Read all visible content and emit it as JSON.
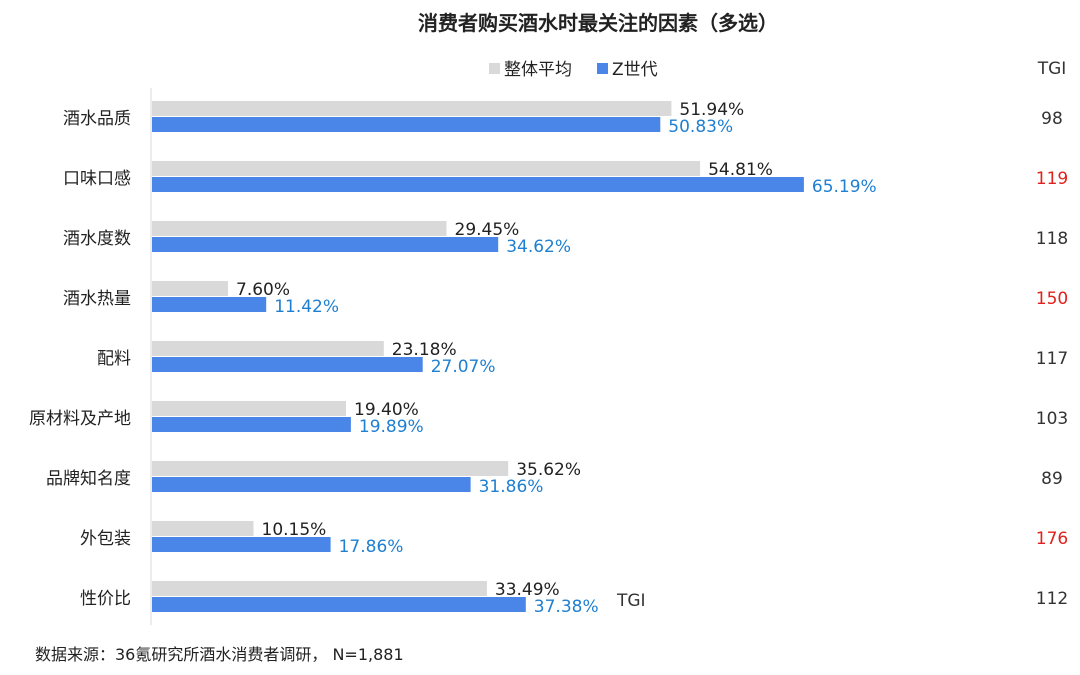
{
  "chart_data": {
    "type": "bar",
    "orientation": "horizontal",
    "title": "消费者购买酒水时最关注的因素（多选）",
    "categories": [
      "酒水品质",
      "口味口感",
      "酒水度数",
      "酒水热量",
      "配料",
      "原材料及产地",
      "品牌知名度",
      "外包装",
      "性价比"
    ],
    "series": [
      {
        "name": "整体平均",
        "color": "#d9d9d9",
        "values": [
          51.94,
          54.81,
          29.45,
          7.6,
          23.18,
          19.4,
          35.62,
          10.15,
          33.49
        ],
        "labels": [
          "51.94%",
          "54.81%",
          "29.45%",
          "7.60%",
          "23.18%",
          "19.40%",
          "35.62%",
          "10.15%",
          "33.49%"
        ]
      },
      {
        "name": "Z世代",
        "color": "#4a86e8",
        "values": [
          50.83,
          65.19,
          34.62,
          11.42,
          27.07,
          19.89,
          31.86,
          17.86,
          37.38
        ],
        "labels": [
          "50.83%",
          "65.19%",
          "34.62%",
          "11.42%",
          "27.07%",
          "19.89%",
          "31.86%",
          "17.86%",
          "37.38%"
        ]
      }
    ],
    "tgi_header": "TGI",
    "tgi": [
      "98",
      "119",
      "118",
      "150",
      "117",
      "103",
      "89",
      "176",
      "112"
    ],
    "tgi_highlight": [
      false,
      true,
      false,
      true,
      false,
      false,
      false,
      true,
      false
    ],
    "tgi_highlight_color": "#e0211c",
    "inline_tgi_label": "TGI",
    "xlim": [
      0,
      100
    ],
    "grid": false,
    "legend_position": "top-center"
  },
  "source": "数据来源：36氪研究所酒水消费者调研，  N=1,881"
}
